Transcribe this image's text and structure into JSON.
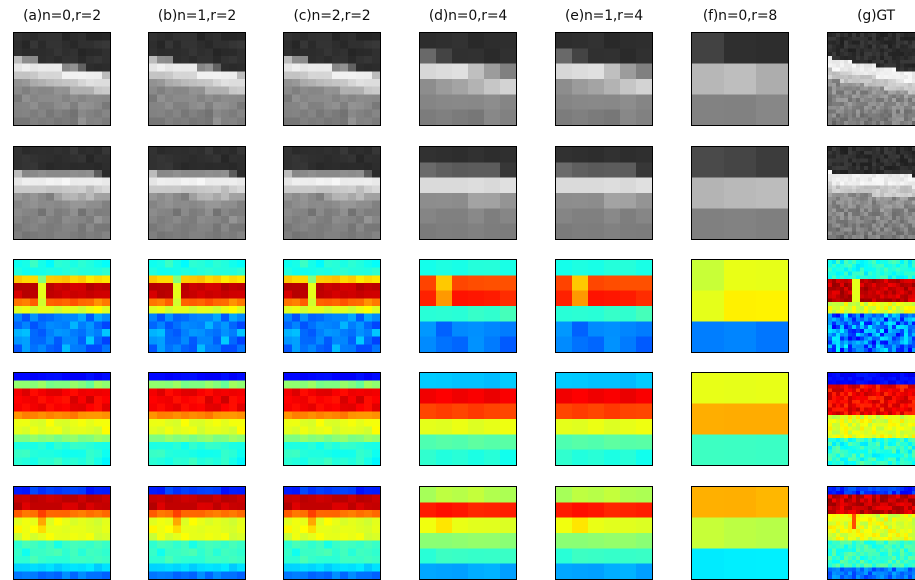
{
  "columns": [
    {
      "title": "(a)n=0,r=2",
      "block": 2
    },
    {
      "title": "(b)n=1,r=2",
      "block": 2
    },
    {
      "title": "(c)n=2,r=2",
      "block": 2
    },
    {
      "title": "(d)n=0,r=4",
      "block": 4
    },
    {
      "title": "(e)n=1,r=4",
      "block": 4
    },
    {
      "title": "(f)n=0,r=8",
      "block": 8
    },
    {
      "title": "(g)GT",
      "block": 1
    }
  ],
  "rows": [
    {
      "kind": "grayscale",
      "name": "gray-image-row-1"
    },
    {
      "kind": "grayscale",
      "name": "gray-image-row-2"
    },
    {
      "kind": "heatmap",
      "name": "heatmap-row-1"
    },
    {
      "kind": "heatmap",
      "name": "heatmap-row-2"
    },
    {
      "kind": "heatmap",
      "name": "heatmap-row-3"
    }
  ],
  "colormap": "jet",
  "colors": {
    "background": "#ffffff",
    "panel_border": "#000000",
    "title_text": "#111111"
  }
}
